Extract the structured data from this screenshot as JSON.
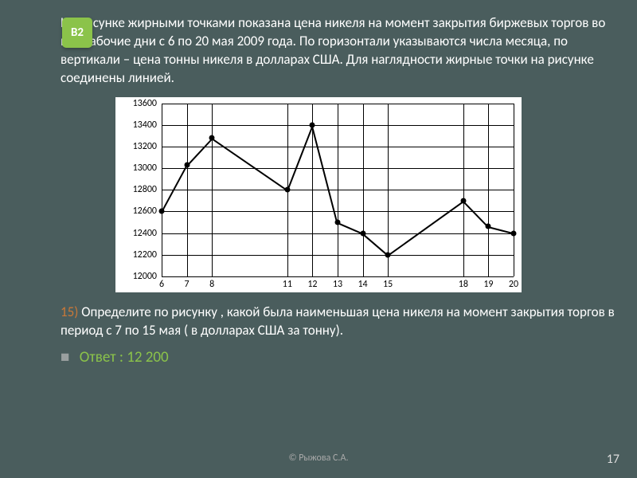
{
  "badge": "В2",
  "problem": "На рисунке жирными точками показана цена никеля на момент закрытия биржевых торгов во все рабочие дни с 6 по 20 мая 2009 года. По горизонтали указываются числа месяца, по вертикали – цена тонны никеля в долларах США. Для наглядности жирные точки на рисунке соединены линией.",
  "question_num": "15)",
  "question": "Определите по рисунку , какой была наименьшая цена никеля на момент закрытия торгов в период с 7 по 15 мая ( в долларах США за тонну).",
  "bullet": "■",
  "answer_label": "Ответ :",
  "answer_value": "12 200",
  "copyright": "© Рыжова С.А.",
  "page": "17",
  "chart": {
    "y_min": 12000,
    "y_max": 13600,
    "y_step": 200,
    "y_ticks": [
      12000,
      12200,
      12400,
      12600,
      12800,
      13000,
      13200,
      13400,
      13600
    ],
    "x_min": 6,
    "x_max": 20,
    "x_ticks": [
      6,
      7,
      8,
      11,
      12,
      13,
      14,
      15,
      18,
      19,
      20
    ],
    "points": [
      {
        "x": 6,
        "y": 12600
      },
      {
        "x": 7,
        "y": 13030
      },
      {
        "x": 8,
        "y": 13280
      },
      {
        "x": 11,
        "y": 12800
      },
      {
        "x": 12,
        "y": 13400
      },
      {
        "x": 13,
        "y": 12500
      },
      {
        "x": 14,
        "y": 12400
      },
      {
        "x": 15,
        "y": 12200
      },
      {
        "x": 18,
        "y": 12700
      },
      {
        "x": 19,
        "y": 12460
      },
      {
        "x": 20,
        "y": 12400
      }
    ],
    "grid_color": "#000",
    "point_color": "#000",
    "line_color": "#000",
    "background": "#ffffff",
    "label_fontsize": 12
  }
}
